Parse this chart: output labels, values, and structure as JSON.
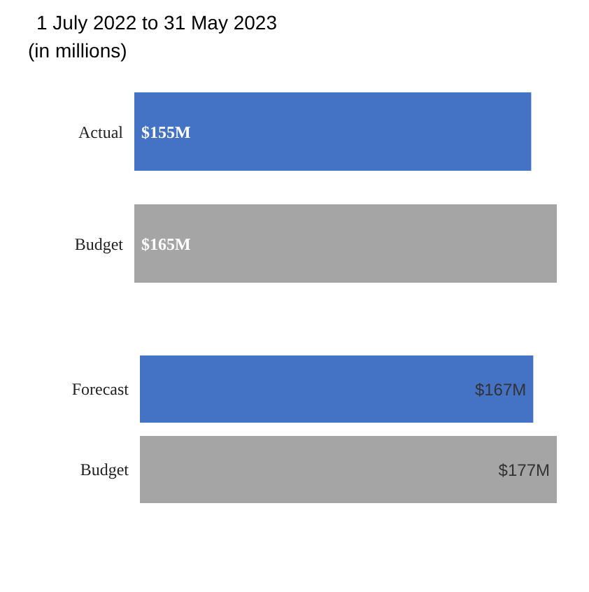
{
  "chart_data": [
    {
      "type": "bar",
      "orientation": "horizontal",
      "title": "1 July 2022 to 31 May 2023",
      "subtitle": "(in millions)",
      "categories": [
        "Actual",
        "Budget"
      ],
      "values": [
        155,
        165
      ],
      "colors": [
        "#4472c4",
        "#a5a5a5"
      ],
      "value_labels": [
        "$155M",
        "$165M"
      ],
      "grid": false,
      "legend": false
    },
    {
      "type": "bar",
      "orientation": "horizontal",
      "categories": [
        "Forecast",
        "Budget"
      ],
      "values": [
        167,
        177
      ],
      "colors": [
        "#4472c4",
        "#a5a5a5"
      ],
      "value_labels": [
        "$167M",
        "$177M"
      ],
      "grid": false,
      "legend": false
    }
  ]
}
